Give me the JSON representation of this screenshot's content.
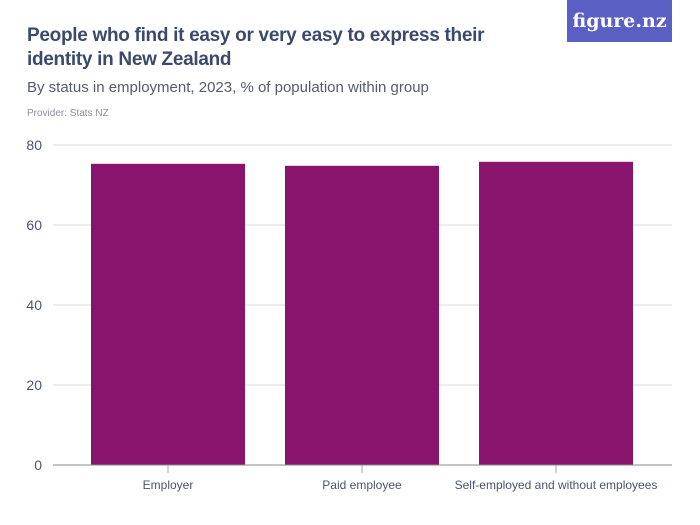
{
  "title": "People who find it easy or very easy to express their identity in New Zealand",
  "subtitle": "By status in employment, 2023, % of population within group",
  "provider": "Provider: Stats NZ",
  "logo": "figure.nz",
  "colors": {
    "bar": "#88146e",
    "logo_bg": "#5a5fc4"
  },
  "chart_data": {
    "type": "bar",
    "categories": [
      "Employer",
      "Paid employee",
      "Self-employed and without employees"
    ],
    "values": [
      75.3,
      74.8,
      75.8
    ],
    "ylim": [
      0,
      80
    ],
    "yticks": [
      0,
      20,
      40,
      60,
      80
    ],
    "grid": true,
    "xlabel": "",
    "ylabel": ""
  }
}
